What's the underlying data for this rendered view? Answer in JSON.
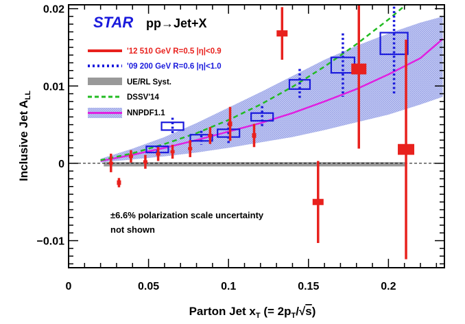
{
  "chart_data": {
    "type": "scatter",
    "experiment_label": "STAR",
    "process_label": "pp→Jet+X",
    "xlabel": "Parton Jet x_T (= 2p_T/√s)",
    "ylabel": "Inclusive Jet A_LL",
    "xlim": [
      0,
      0.235
    ],
    "ylim": [
      -0.0135,
      0.0205
    ],
    "x_ticks": [
      0,
      0.05,
      0.1,
      0.15,
      0.2
    ],
    "x_tick_labels": [
      "0",
      "0.05",
      "0.1",
      "0.15",
      "0.2"
    ],
    "y_ticks": [
      -0.01,
      0,
      0.01,
      0.02
    ],
    "y_tick_labels": [
      "−0.01",
      "0",
      "0.01",
      "0.02"
    ],
    "grid": false,
    "legend_position": "top-left",
    "colors": {
      "star_text": "#1a1adc",
      "data_2012": "#e8211d",
      "data_2009": "#1a1adc",
      "syst_band": "#999999",
      "dssv": "#22bb22",
      "nnpdf": "#e020e0",
      "nnpdf_band": "#aab4ee"
    },
    "legend": [
      {
        "name": "'12 510 GeV R=0.5 |η|<0.9",
        "style": "solid-red"
      },
      {
        "name": "'09 200 GeV R=0.6 |η|<1.0",
        "style": "dotted-blue"
      },
      {
        "name": "UE/RL Syst.",
        "style": "gray-band"
      },
      {
        "name": "DSSV'14",
        "style": "dashed-green"
      },
      {
        "name": "NNPDF1.1",
        "style": "magenta-band"
      }
    ],
    "series": [
      {
        "name": "'12 510 GeV R=0.5 |η|<0.9",
        "points": [
          {
            "x": 0.0265,
            "y": 5e-05,
            "err": 0.0012,
            "sys": 0.00015
          },
          {
            "x": 0.0315,
            "y": -0.0025,
            "err": 0.0006,
            "sys": 0.0003
          },
          {
            "x": 0.039,
            "y": 0.0009,
            "err": 0.0008,
            "sys": 0.0002
          },
          {
            "x": 0.048,
            "y": 0.0002,
            "err": 0.0009,
            "sys": 0.0002
          },
          {
            "x": 0.056,
            "y": 0.0012,
            "err": 0.0009,
            "sys": 0.0002
          },
          {
            "x": 0.065,
            "y": 0.0015,
            "err": 0.0009,
            "sys": 0.0002
          },
          {
            "x": 0.076,
            "y": 0.0019,
            "err": 0.0011,
            "sys": 0.0002
          },
          {
            "x": 0.0885,
            "y": 0.0036,
            "err": 0.0011,
            "sys": 0.0002
          },
          {
            "x": 0.101,
            "y": 0.0051,
            "err": 0.0022,
            "sys": 0.0003
          },
          {
            "x": 0.116,
            "y": 0.0036,
            "err": 0.0015,
            "sys": 0.0003
          },
          {
            "x": 0.1335,
            "y": 0.0168,
            "err": 0.0034,
            "sys": 0.0004
          },
          {
            "x": 0.156,
            "y": -0.005,
            "err": 0.0053,
            "sys": 0.0004
          },
          {
            "x": 0.1815,
            "y": 0.0122,
            "err": 0.0103,
            "sys": 0.0007
          },
          {
            "x": 0.211,
            "y": 0.0018,
            "err": 0.0142,
            "sys": 0.0007
          }
        ]
      },
      {
        "name": "'09 200 GeV R=0.6 |η|<1.0",
        "points": [
          {
            "x": 0.0555,
            "y": 0.0018,
            "err": 0.0005,
            "sys": 0.0004
          },
          {
            "x": 0.065,
            "y": 0.0048,
            "err": 0.0011,
            "sys": 0.0005
          },
          {
            "x": 0.083,
            "y": 0.0033,
            "err": 0.0009,
            "sys": 0.0004
          },
          {
            "x": 0.1,
            "y": 0.0039,
            "err": 0.0013,
            "sys": 0.0005
          },
          {
            "x": 0.121,
            "y": 0.006,
            "err": 0.0014,
            "sys": 0.0005
          },
          {
            "x": 0.1445,
            "y": 0.0102,
            "err": 0.002,
            "sys": 0.0006
          },
          {
            "x": 0.1715,
            "y": 0.0127,
            "err": 0.0041,
            "sys": 0.001
          },
          {
            "x": 0.2035,
            "y": 0.0155,
            "err": 0.0065,
            "sys": 0.0014
          }
        ]
      },
      {
        "name": "DSSV'14",
        "x": [
          0.02,
          0.04,
          0.06,
          0.08,
          0.1,
          0.12,
          0.14,
          0.16,
          0.18,
          0.2,
          0.22
        ],
        "y": [
          0.0004,
          0.0013,
          0.0025,
          0.0039,
          0.0056,
          0.0076,
          0.0099,
          0.0125,
          0.0154,
          0.0186,
          0.0221
        ]
      },
      {
        "name": "NNPDF1.1",
        "x": [
          0.02,
          0.04,
          0.06,
          0.08,
          0.1,
          0.12,
          0.14,
          0.16,
          0.18,
          0.2,
          0.22,
          0.234
        ],
        "y": [
          0.0003,
          0.0011,
          0.002,
          0.003,
          0.0041,
          0.0052,
          0.0065,
          0.008,
          0.0096,
          0.0115,
          0.0136,
          0.0161
        ],
        "band_upper": [
          0.0006,
          0.0019,
          0.0034,
          0.0052,
          0.0072,
          0.0092,
          0.0113,
          0.0134,
          0.0152,
          0.0168,
          0.0182,
          0.019
        ],
        "band_lower": [
          0.0001,
          0.0005,
          0.0009,
          0.0014,
          0.002,
          0.0027,
          0.0034,
          0.0043,
          0.0053,
          0.0063,
          0.0076,
          0.0086
        ]
      },
      {
        "name": "UE/RL Syst.",
        "x_range": [
          0.022,
          0.211
        ],
        "y_range": [
          -0.0004,
          0.00015
        ]
      }
    ],
    "annotation_lines": [
      "±6.6% polarization scale uncertainty",
      "not shown"
    ]
  }
}
